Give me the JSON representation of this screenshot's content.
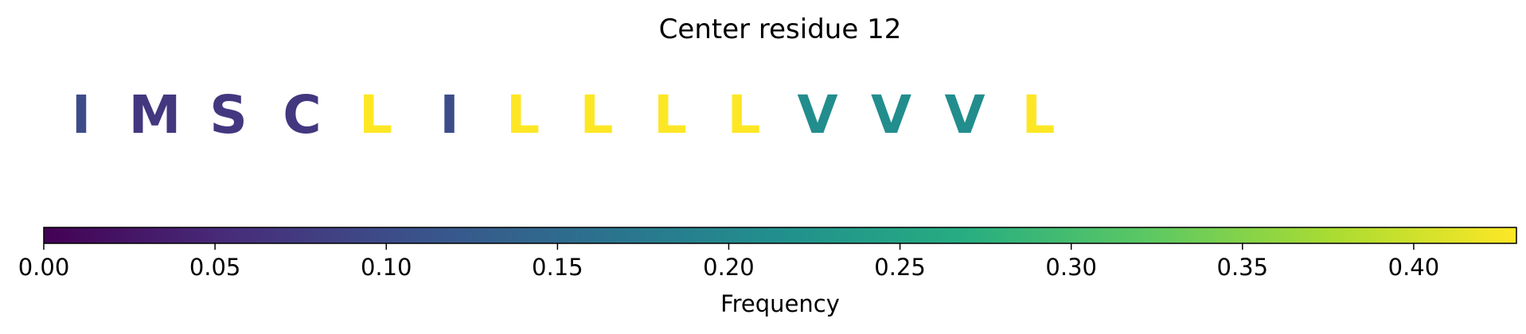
{
  "chart_data": {
    "type": "heatmap",
    "title": "Center residue 12",
    "residues": [
      {
        "letter": "I",
        "frequency": 0.1
      },
      {
        "letter": "M",
        "frequency": 0.07
      },
      {
        "letter": "S",
        "frequency": 0.07
      },
      {
        "letter": "C",
        "frequency": 0.07
      },
      {
        "letter": "L",
        "frequency": 0.43
      },
      {
        "letter": "I",
        "frequency": 0.1
      },
      {
        "letter": "L",
        "frequency": 0.43
      },
      {
        "letter": "L",
        "frequency": 0.43
      },
      {
        "letter": "L",
        "frequency": 0.43
      },
      {
        "letter": "L",
        "frequency": 0.43
      },
      {
        "letter": "V",
        "frequency": 0.21
      },
      {
        "letter": "V",
        "frequency": 0.21
      },
      {
        "letter": "V",
        "frequency": 0.21
      },
      {
        "letter": "L",
        "frequency": 0.43
      }
    ],
    "colorbar": {
      "label": "Frequency",
      "colormap": "viridis",
      "range": [
        0,
        0.43
      ],
      "ticks": [
        "0.00",
        "0.05",
        "0.10",
        "0.15",
        "0.20",
        "0.25",
        "0.30",
        "0.35",
        "0.40"
      ]
    }
  }
}
